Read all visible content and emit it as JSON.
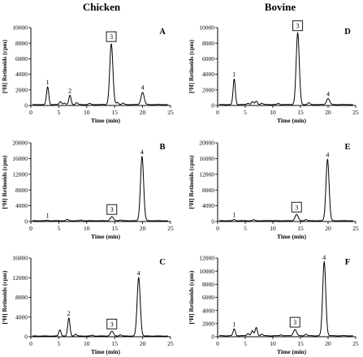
{
  "columns": [
    "Chicken",
    "Bovine"
  ],
  "chart_data": [
    {
      "type": "line",
      "panel": "A",
      "column": "Chicken",
      "xlabel": "Time (min)",
      "ylabel": "[³H] Retinoids (cpm)",
      "xlim": [
        0,
        25
      ],
      "ylim": [
        0,
        10000
      ],
      "xticks": [
        "0",
        "5",
        "10",
        "15",
        "20",
        "25"
      ],
      "yticks": [
        "0",
        "2000",
        "4000",
        "6000",
        "8000",
        "10000"
      ],
      "baseline": 120,
      "peaks": [
        {
          "x": 3.0,
          "y": 2400,
          "label": "1"
        },
        {
          "x": 5.3,
          "y": 500,
          "label": ""
        },
        {
          "x": 6.0,
          "y": 300,
          "label": ""
        },
        {
          "x": 7.0,
          "y": 1300,
          "label": "2"
        },
        {
          "x": 8.2,
          "y": 350,
          "label": ""
        },
        {
          "x": 10.5,
          "y": 250,
          "label": ""
        },
        {
          "x": 14.4,
          "y": 7900,
          "label": "3",
          "boxed": true
        },
        {
          "x": 15.5,
          "y": 400,
          "label": ""
        },
        {
          "x": 16.5,
          "y": 300,
          "label": ""
        },
        {
          "x": 20.0,
          "y": 1700,
          "label": "4"
        }
      ]
    },
    {
      "type": "line",
      "panel": "B",
      "column": "Chicken",
      "xlabel": "Time (min)",
      "ylabel": "[³H] Retinoids (cpm)",
      "xlim": [
        0,
        25
      ],
      "ylim": [
        0,
        20000
      ],
      "xticks": [
        "0",
        "5",
        "10",
        "15",
        "20",
        "25"
      ],
      "yticks": [
        "0",
        "4000",
        "8000",
        "12000",
        "16000",
        "20000"
      ],
      "baseline": 200,
      "peaks": [
        {
          "x": 3.0,
          "y": 300,
          "label": "1"
        },
        {
          "x": 6.5,
          "y": 500,
          "label": ""
        },
        {
          "x": 9.0,
          "y": 350,
          "label": ""
        },
        {
          "x": 14.5,
          "y": 1200,
          "label": "3",
          "boxed": true
        },
        {
          "x": 16.0,
          "y": 400,
          "label": ""
        },
        {
          "x": 19.9,
          "y": 16500,
          "label": "4"
        }
      ]
    },
    {
      "type": "line",
      "panel": "C",
      "column": "Chicken",
      "xlabel": "Time (min)",
      "ylabel": "[³H] Retinoids (cpm)",
      "xlim": [
        0,
        25
      ],
      "ylim": [
        0,
        16000
      ],
      "xticks": [
        "0",
        "5",
        "10",
        "15",
        "20",
        "25"
      ],
      "yticks": [
        "0",
        "4000",
        "8000",
        "12000",
        "16000"
      ],
      "baseline": 150,
      "peaks": [
        {
          "x": 5.2,
          "y": 1400,
          "label": ""
        },
        {
          "x": 6.8,
          "y": 3800,
          "label": "2"
        },
        {
          "x": 8.0,
          "y": 500,
          "label": ""
        },
        {
          "x": 11.0,
          "y": 300,
          "label": ""
        },
        {
          "x": 14.5,
          "y": 1100,
          "label": "3",
          "boxed": true
        },
        {
          "x": 16.0,
          "y": 400,
          "label": ""
        },
        {
          "x": 19.3,
          "y": 12000,
          "label": "4"
        }
      ]
    },
    {
      "type": "line",
      "panel": "D",
      "column": "Bovine",
      "xlabel": "Time (min)",
      "ylabel": "[³H] Retinoids (cpm)",
      "xlim": [
        0,
        25
      ],
      "ylim": [
        0,
        10000
      ],
      "xticks": [
        "0",
        "5",
        "10",
        "15",
        "20",
        "25"
      ],
      "yticks": [
        "0",
        "2000",
        "4000",
        "6000",
        "8000",
        "10000"
      ],
      "baseline": 120,
      "peaks": [
        {
          "x": 3.0,
          "y": 3400,
          "label": "1"
        },
        {
          "x": 5.5,
          "y": 300,
          "label": ""
        },
        {
          "x": 6.3,
          "y": 500,
          "label": ""
        },
        {
          "x": 7.0,
          "y": 550,
          "label": ""
        },
        {
          "x": 8.0,
          "y": 300,
          "label": ""
        },
        {
          "x": 11.0,
          "y": 250,
          "label": ""
        },
        {
          "x": 14.5,
          "y": 9300,
          "label": "3",
          "boxed": true
        },
        {
          "x": 16.5,
          "y": 350,
          "label": ""
        },
        {
          "x": 20.0,
          "y": 900,
          "label": "4"
        }
      ]
    },
    {
      "type": "line",
      "panel": "E",
      "column": "Bovine",
      "xlabel": "Time (min)",
      "ylabel": "[³H] Retinoids (cpm)",
      "xlim": [
        0,
        25
      ],
      "ylim": [
        0,
        20000
      ],
      "xticks": [
        "0",
        "5",
        "10",
        "15",
        "20",
        "25"
      ],
      "yticks": [
        "0",
        "4000",
        "8000",
        "12000",
        "16000",
        "20000"
      ],
      "baseline": 200,
      "peaks": [
        {
          "x": 3.0,
          "y": 500,
          "label": "1"
        },
        {
          "x": 6.5,
          "y": 450,
          "label": ""
        },
        {
          "x": 9.5,
          "y": 300,
          "label": ""
        },
        {
          "x": 14.3,
          "y": 1800,
          "label": "3",
          "boxed": true
        },
        {
          "x": 16.0,
          "y": 500,
          "label": ""
        },
        {
          "x": 19.9,
          "y": 15800,
          "label": "4"
        }
      ]
    },
    {
      "type": "line",
      "panel": "F",
      "column": "Bovine",
      "xlabel": "Time (min)",
      "ylabel": "[³H] Retinoids (cpm)",
      "xlim": [
        0,
        25
      ],
      "ylim": [
        0,
        12000
      ],
      "xticks": [
        "0",
        "5",
        "10",
        "15",
        "20",
        "25"
      ],
      "yticks": [
        "0",
        "2000",
        "4000",
        "6000",
        "8000",
        "10000",
        "12000"
      ],
      "baseline": 150,
      "peaks": [
        {
          "x": 3.0,
          "y": 1200,
          "label": "1"
        },
        {
          "x": 5.5,
          "y": 500,
          "label": ""
        },
        {
          "x": 6.3,
          "y": 900,
          "label": ""
        },
        {
          "x": 7.0,
          "y": 1400,
          "label": ""
        },
        {
          "x": 8.0,
          "y": 400,
          "label": ""
        },
        {
          "x": 11.5,
          "y": 300,
          "label": ""
        },
        {
          "x": 14.0,
          "y": 1100,
          "label": "3",
          "boxed": true
        },
        {
          "x": 16.0,
          "y": 400,
          "label": ""
        },
        {
          "x": 19.3,
          "y": 11400,
          "label": "4"
        }
      ]
    }
  ]
}
